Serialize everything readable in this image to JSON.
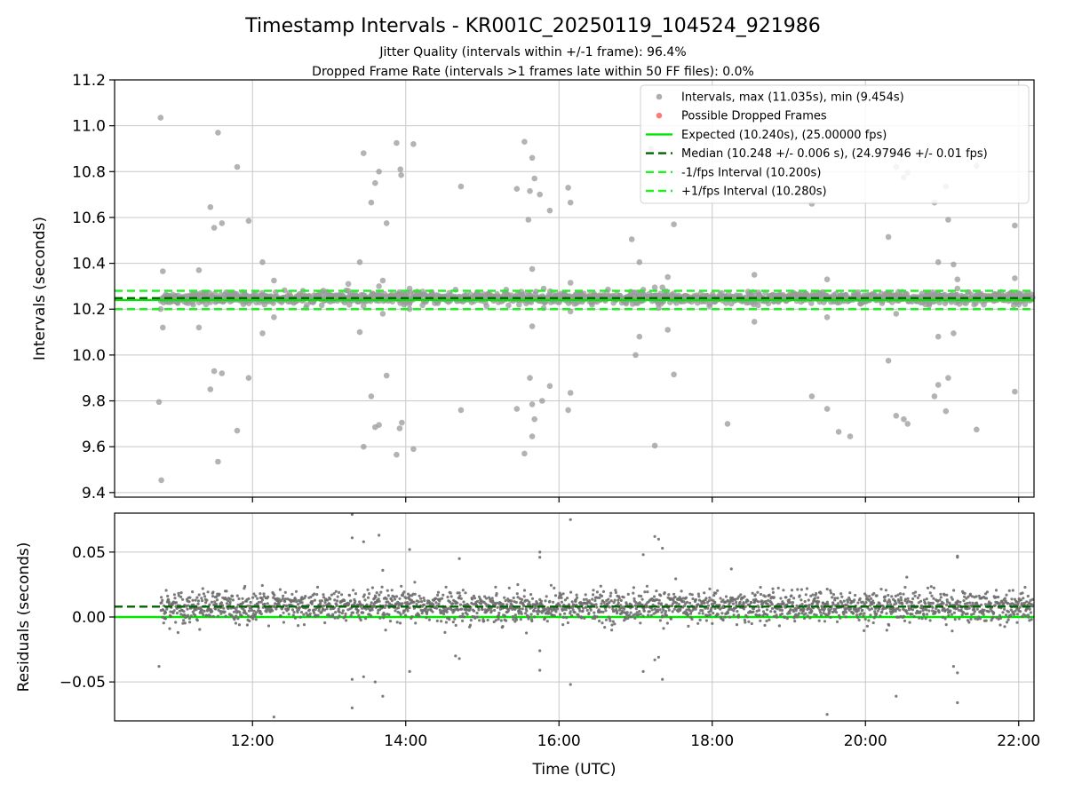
{
  "figure": {
    "title": "Timestamp Intervals - KR001C_20250119_104524_921986",
    "subtitle_1": "Jitter Quality (intervals within +/-1 frame): 96.4%",
    "subtitle_2": "Dropped Frame Rate (intervals >1 frames late within 50 FF files): 0.0%"
  },
  "colors": {
    "intervals": "#9a9a9a",
    "residuals": "#6e6e6e",
    "dropped": "#ff5a5a",
    "expected": "#00e600",
    "median": "#006400",
    "bounds": "#22ee22",
    "grid": "#c8c8c8"
  },
  "chart_data": [
    {
      "type": "scatter",
      "name": "intervals-panel",
      "xlabel": "",
      "ylabel": "Intervals (seconds)",
      "xlim": [
        10.2,
        22.2
      ],
      "ylim": [
        9.38,
        11.2
      ],
      "yticks": [
        9.4,
        9.6,
        9.8,
        10.0,
        10.2,
        10.4,
        10.6,
        10.8,
        11.0,
        11.2
      ],
      "ytick_labels": [
        "9.4",
        "9.6",
        "9.8",
        "10.0",
        "10.2",
        "10.4",
        "10.6",
        "10.8",
        "11.0",
        "11.2"
      ],
      "xticks": [
        12,
        14,
        16,
        18,
        20,
        22
      ],
      "grid": true,
      "legend_position": "top-right",
      "legend": [
        {
          "label": "Intervals, max (11.035s), min (9.454s)",
          "kind": "marker",
          "color": "#9a9a9a"
        },
        {
          "label": "Possible Dropped Frames",
          "kind": "marker",
          "color": "#ff5a5a"
        },
        {
          "label": "Expected (10.240s), (25.00000 fps)",
          "kind": "line",
          "color": "#00e600"
        },
        {
          "label": "Median (10.248 +/- 0.006 s), (24.97946 +/- 0.01 fps)",
          "kind": "dash",
          "color": "#006400"
        },
        {
          "label": "-1/fps Interval (10.200s)",
          "kind": "dash",
          "color": "#22ee22"
        },
        {
          "label": "+1/fps Interval (10.280s)",
          "kind": "dash",
          "color": "#22ee22"
        }
      ],
      "reference_lines": {
        "expected": 10.24,
        "median": 10.248,
        "minus_one_frame": 10.2,
        "plus_one_frame": 10.28
      },
      "series": [
        {
          "kind": "band",
          "x_range": [
            10.8,
            22.2
          ],
          "center": 10.248,
          "spread": 0.012,
          "count": 1400
        },
        {
          "kind": "outliers",
          "points": [
            [
              10.8,
              11.035
            ],
            [
              10.83,
              10.365
            ],
            [
              10.83,
              10.12
            ],
            [
              10.78,
              9.795
            ],
            [
              10.81,
              9.454
            ],
            [
              10.8,
              10.2
            ],
            [
              11.3,
              10.37
            ],
            [
              11.3,
              10.12
            ],
            [
              11.55,
              10.97
            ],
            [
              11.45,
              10.645
            ],
            [
              11.5,
              10.555
            ],
            [
              11.6,
              10.575
            ],
            [
              11.45,
              9.85
            ],
            [
              11.5,
              9.93
            ],
            [
              11.6,
              9.92
            ],
            [
              11.55,
              9.535
            ],
            [
              11.8,
              10.82
            ],
            [
              11.8,
              9.67
            ],
            [
              11.95,
              10.585
            ],
            [
              11.95,
              9.9
            ],
            [
              12.13,
              10.405
            ],
            [
              12.13,
              10.095
            ],
            [
              12.28,
              10.325
            ],
            [
              12.28,
              10.165
            ],
            [
              13.25,
              10.31
            ],
            [
              13.25,
              10.28
            ],
            [
              13.4,
              10.405
            ],
            [
              13.4,
              10.1
            ],
            [
              13.45,
              10.88
            ],
            [
              13.45,
              9.6
            ],
            [
              13.55,
              10.665
            ],
            [
              13.6,
              10.75
            ],
            [
              13.65,
              10.8
            ],
            [
              13.7,
              10.325
            ],
            [
              13.75,
              10.575
            ],
            [
              13.55,
              9.82
            ],
            [
              13.65,
              9.695
            ],
            [
              13.6,
              9.685
            ],
            [
              13.75,
              9.91
            ],
            [
              13.7,
              10.18
            ],
            [
              13.65,
              10.3
            ],
            [
              13.88,
              10.925
            ],
            [
              13.93,
              10.81
            ],
            [
              13.94,
              10.785
            ],
            [
              13.92,
              9.68
            ],
            [
              13.95,
              9.705
            ],
            [
              13.88,
              9.565
            ],
            [
              14.1,
              10.92
            ],
            [
              14.1,
              9.59
            ],
            [
              14.05,
              10.29
            ],
            [
              14.05,
              10.2
            ],
            [
              14.72,
              10.735
            ],
            [
              14.72,
              9.76
            ],
            [
              14.65,
              10.285
            ],
            [
              15.45,
              10.725
            ],
            [
              15.55,
              10.93
            ],
            [
              15.6,
              10.59
            ],
            [
              15.65,
              10.86
            ],
            [
              15.68,
              10.77
            ],
            [
              15.62,
              10.715
            ],
            [
              15.75,
              10.7
            ],
            [
              15.88,
              10.63
            ],
            [
              15.65,
              10.375
            ],
            [
              15.45,
              9.765
            ],
            [
              15.55,
              9.57
            ],
            [
              15.62,
              9.9
            ],
            [
              15.65,
              9.785
            ],
            [
              15.68,
              9.72
            ],
            [
              15.65,
              9.645
            ],
            [
              15.78,
              9.8
            ],
            [
              15.88,
              9.865
            ],
            [
              15.65,
              10.125
            ],
            [
              15.8,
              10.29
            ],
            [
              15.8,
              10.205
            ],
            [
              16.12,
              10.73
            ],
            [
              16.15,
              10.665
            ],
            [
              16.15,
              10.315
            ],
            [
              16.15,
              10.19
            ],
            [
              16.15,
              9.835
            ],
            [
              16.12,
              9.76
            ],
            [
              16.95,
              10.505
            ],
            [
              17.05,
              10.405
            ],
            [
              17.05,
              10.08
            ],
            [
              17.0,
              10.0
            ],
            [
              17.1,
              10.285
            ],
            [
              17.2,
              10.9
            ],
            [
              17.25,
              10.295
            ],
            [
              17.35,
              10.295
            ],
            [
              17.42,
              10.34
            ],
            [
              17.42,
              10.11
            ],
            [
              17.5,
              10.57
            ],
            [
              17.5,
              9.915
            ],
            [
              17.25,
              9.605
            ],
            [
              17.3,
              10.205
            ],
            [
              18.2,
              9.7
            ],
            [
              18.55,
              10.35
            ],
            [
              18.55,
              10.145
            ],
            [
              19.3,
              10.66
            ],
            [
              19.3,
              9.82
            ],
            [
              19.5,
              10.33
            ],
            [
              19.5,
              10.165
            ],
            [
              19.5,
              9.765
            ],
            [
              19.65,
              9.665
            ],
            [
              19.8,
              9.645
            ],
            [
              20.3,
              10.515
            ],
            [
              20.3,
              9.975
            ],
            [
              20.4,
              10.82
            ],
            [
              20.4,
              10.18
            ],
            [
              20.4,
              9.735
            ],
            [
              20.5,
              10.775
            ],
            [
              20.55,
              10.795
            ],
            [
              20.5,
              9.72
            ],
            [
              20.55,
              9.7
            ],
            [
              20.9,
              10.665
            ],
            [
              20.95,
              10.405
            ],
            [
              20.95,
              10.08
            ],
            [
              20.9,
              9.82
            ],
            [
              20.95,
              9.87
            ],
            [
              21.05,
              10.735
            ],
            [
              21.08,
              10.59
            ],
            [
              21.08,
              9.9
            ],
            [
              21.05,
              9.755
            ],
            [
              21.15,
              10.395
            ],
            [
              21.15,
              10.095
            ],
            [
              21.2,
              10.33
            ],
            [
              21.2,
              10.29
            ],
            [
              21.45,
              10.825
            ],
            [
              21.45,
              9.675
            ],
            [
              21.95,
              10.565
            ],
            [
              21.95,
              10.335
            ],
            [
              21.95,
              9.84
            ],
            [
              22.0,
              10.22
            ]
          ]
        }
      ]
    },
    {
      "type": "scatter",
      "name": "residuals-panel",
      "xlabel": "Time (UTC)",
      "ylabel": "Residuals (seconds)",
      "xlim": [
        10.2,
        22.2
      ],
      "ylim": [
        -0.08,
        0.08
      ],
      "yticks": [
        -0.05,
        0.0,
        0.05
      ],
      "ytick_labels": [
        "−0.05",
        "0.00",
        "0.05"
      ],
      "xticks": [
        12,
        14,
        16,
        18,
        20,
        22
      ],
      "xtick_labels": [
        "12:00",
        "14:00",
        "16:00",
        "18:00",
        "20:00",
        "22:00"
      ],
      "grid": true,
      "reference_lines": {
        "zero": 0.0,
        "median": 0.008
      },
      "series": [
        {
          "kind": "band",
          "x_range": [
            10.8,
            22.2
          ],
          "center": 0.008,
          "spread": 0.006,
          "count": 2400
        },
        {
          "kind": "outliers",
          "points": [
            [
              10.78,
              -0.038
            ],
            [
              12.28,
              -0.077
            ],
            [
              13.3,
              0.079
            ],
            [
              13.3,
              0.061
            ],
            [
              13.3,
              -0.048
            ],
            [
              13.3,
              -0.07
            ],
            [
              13.45,
              0.058
            ],
            [
              13.45,
              -0.046
            ],
            [
              13.65,
              0.063
            ],
            [
              13.6,
              -0.05
            ],
            [
              13.7,
              -0.061
            ],
            [
              13.7,
              0.036
            ],
            [
              14.05,
              0.052
            ],
            [
              14.05,
              -0.042
            ],
            [
              14.65,
              -0.03
            ],
            [
              14.7,
              0.045
            ],
            [
              14.7,
              -0.032
            ],
            [
              15.75,
              0.05
            ],
            [
              15.75,
              0.046
            ],
            [
              15.75,
              -0.026
            ],
            [
              15.75,
              -0.041
            ],
            [
              16.15,
              0.075
            ],
            [
              16.15,
              -0.052
            ],
            [
              17.1,
              0.048
            ],
            [
              17.1,
              -0.042
            ],
            [
              17.25,
              0.062
            ],
            [
              17.3,
              0.06
            ],
            [
              17.35,
              0.053
            ],
            [
              17.25,
              -0.033
            ],
            [
              17.3,
              -0.031
            ],
            [
              17.35,
              -0.048
            ],
            [
              18.25,
              0.037
            ],
            [
              19.5,
              -0.075
            ],
            [
              20.4,
              -0.061
            ],
            [
              21.2,
              0.047
            ],
            [
              21.2,
              0.046
            ],
            [
              21.15,
              -0.038
            ],
            [
              21.2,
              -0.043
            ],
            [
              21.2,
              -0.066
            ]
          ]
        }
      ]
    }
  ]
}
